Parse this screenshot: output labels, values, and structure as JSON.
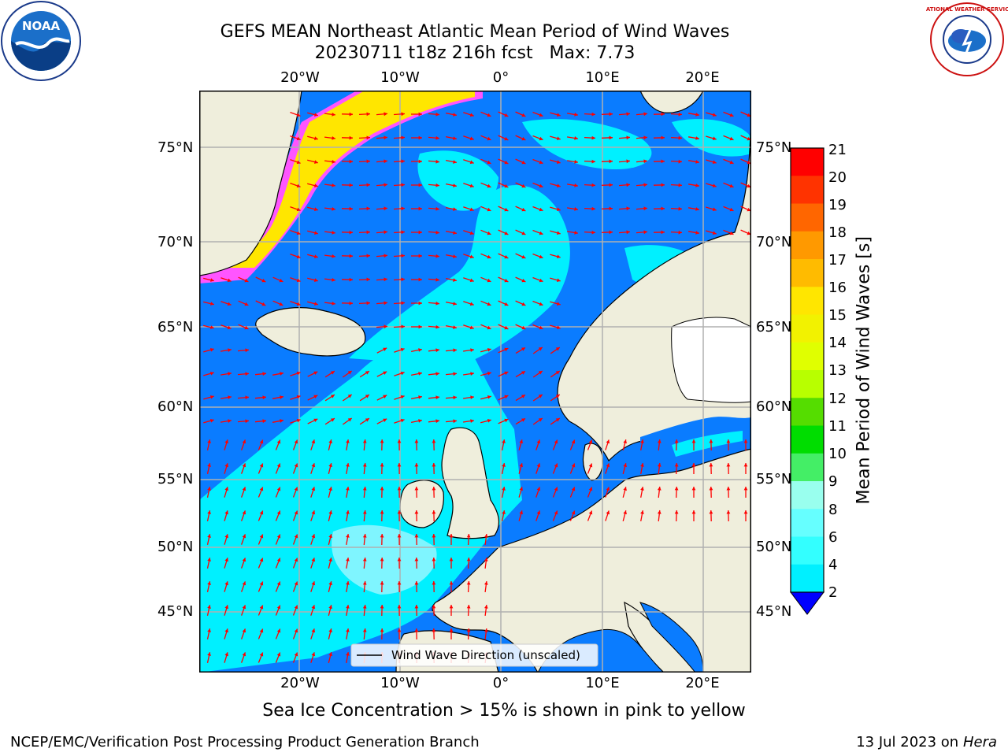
{
  "title": {
    "line1": "GEFS MEAN Northeast Atlantic Mean Period of Wind Waves",
    "line2": "20230711 t18z 216h fcst   Max: 7.73"
  },
  "logos": {
    "left": "NOAA",
    "right": "NATIONAL WEATHER SERVICE",
    "left_ring_text": "NATIONAL OCEANIC AND ATMOSPHERIC ADMINISTRATION · U.S. DEPARTMENT OF COMMERCE"
  },
  "map": {
    "lon_labels": [
      "20°W",
      "10°W",
      "0°",
      "10°E",
      "20°E"
    ],
    "lat_labels": [
      "75°N",
      "70°N",
      "65°N",
      "60°N",
      "55°N",
      "50°N",
      "45°N"
    ],
    "legend_label": "Wind Wave Direction (unscaled)",
    "colors": {
      "ocean_dark": "#0a7cff",
      "ocean_light": "#00f0ff",
      "ocean_pale": "#7ff5ff",
      "land": "#efeedc",
      "ice_pink": "#ff55ff",
      "ice_yellow": "#ffe600",
      "arrow": "#ff0000",
      "grid": "#b0b0b0"
    }
  },
  "colorbar": {
    "label": "Mean Period of Wind Waves [s]",
    "ticks": [
      "21",
      "20",
      "19",
      "18",
      "17",
      "16",
      "15",
      "14",
      "13",
      "12",
      "11",
      "10",
      "9",
      "8",
      "6",
      "4",
      "2"
    ],
    "colors": [
      "#ff0000",
      "#ff3300",
      "#ff6600",
      "#ff9900",
      "#ffbb00",
      "#ffe600",
      "#f2f200",
      "#e0ff00",
      "#b8ff00",
      "#55dd00",
      "#00dd00",
      "#44ee66",
      "#99ffee",
      "#66ffff",
      "#33ffff",
      "#00f0ff",
      "#0a7cff"
    ],
    "under_color": "#0000ff"
  },
  "subtitle": "Sea Ice Concentration > 15% is shown in pink to yellow",
  "footer": {
    "left": "NCEP/EMC/Verification Post Processing Product Generation Branch",
    "right_date": "13 Jul 2023 on ",
    "right_host": "Hera"
  }
}
